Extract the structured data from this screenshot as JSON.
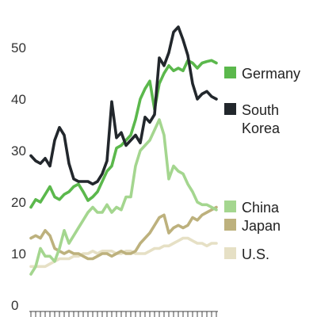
{
  "chart_data": {
    "type": "line",
    "title": "",
    "xlabel": "",
    "ylabel": "",
    "ylim": [
      0,
      60
    ],
    "yticks": [
      0,
      10,
      20,
      30,
      40,
      50
    ],
    "grid": false,
    "legend": "right",
    "x": [
      1,
      2,
      3,
      4,
      5,
      6,
      7,
      8,
      9,
      10,
      11,
      12,
      13,
      14,
      15,
      16,
      17,
      18,
      19,
      20,
      21,
      22,
      23,
      24,
      25,
      26,
      27,
      28,
      29,
      30,
      31,
      32,
      33,
      34,
      35,
      36,
      37,
      38,
      39,
      40
    ],
    "series": [
      {
        "name": "Germany",
        "color": "#5bb84c",
        "label_lines": [
          "Germany"
        ],
        "values": [
          19,
          20.5,
          20,
          21.5,
          23,
          21,
          20.5,
          21.5,
          22,
          23,
          23.5,
          22,
          20.3,
          21,
          22,
          24,
          26,
          27,
          30.5,
          31,
          32,
          33,
          36,
          40,
          42,
          43.5,
          38,
          43,
          45,
          46.5,
          45.5,
          46,
          45.5,
          47.5,
          47,
          46,
          47,
          47.3,
          47.5,
          47
        ]
      },
      {
        "name": "South Korea",
        "color": "#22272c",
        "label_lines": [
          "South",
          "Korea"
        ],
        "values": [
          29,
          28,
          27.5,
          28.5,
          27,
          32,
          34.5,
          33,
          27.5,
          24.5,
          24,
          24,
          24,
          23.5,
          24,
          25.5,
          28,
          39.5,
          32.5,
          33.5,
          31,
          32,
          33,
          31.5,
          36.5,
          35.5,
          37,
          48,
          46.5,
          49,
          53,
          54,
          51.5,
          48.5,
          43,
          40,
          41,
          41.5,
          40.5,
          40
        ]
      },
      {
        "name": "China",
        "color": "#a4d68f",
        "label_lines": [
          "China"
        ],
        "values": [
          6,
          7.5,
          11,
          9.5,
          9.5,
          8.5,
          11,
          14.5,
          12,
          13.5,
          15,
          16.5,
          18,
          19,
          18,
          18,
          19.5,
          18,
          19,
          18.5,
          21,
          21,
          27,
          30,
          31,
          32,
          34,
          36,
          33,
          24.5,
          27,
          26,
          25.5,
          23.5,
          22,
          20,
          19.5,
          19.5,
          19,
          18.5
        ]
      },
      {
        "name": "Japan",
        "color": "#bdb17d",
        "label_lines": [
          "Japan"
        ],
        "values": [
          13,
          13.5,
          13,
          14.5,
          13.5,
          11,
          10.5,
          10,
          10.5,
          10,
          10,
          9.5,
          9,
          9,
          9.5,
          10,
          10,
          9.5,
          10,
          10.5,
          10,
          10,
          10.5,
          12,
          13,
          14,
          15.5,
          17,
          17.5,
          14,
          15,
          15.5,
          15,
          15.5,
          17,
          16.5,
          17.5,
          18,
          18.5,
          19
        ]
      },
      {
        "name": "U.S.",
        "color": "#e6e0c5",
        "label_lines": [
          "U.S."
        ],
        "values": [
          7.5,
          7.5,
          7.5,
          7.5,
          8,
          8.5,
          9,
          9,
          9,
          9.5,
          9.5,
          10,
          10,
          10.5,
          10,
          10.5,
          10.5,
          10.5,
          10,
          10,
          10.5,
          10.5,
          10,
          10,
          10,
          10.5,
          11,
          11,
          11.5,
          11.5,
          12,
          12.5,
          13,
          13,
          12.5,
          12,
          12,
          11.5,
          12,
          12
        ]
      }
    ]
  }
}
